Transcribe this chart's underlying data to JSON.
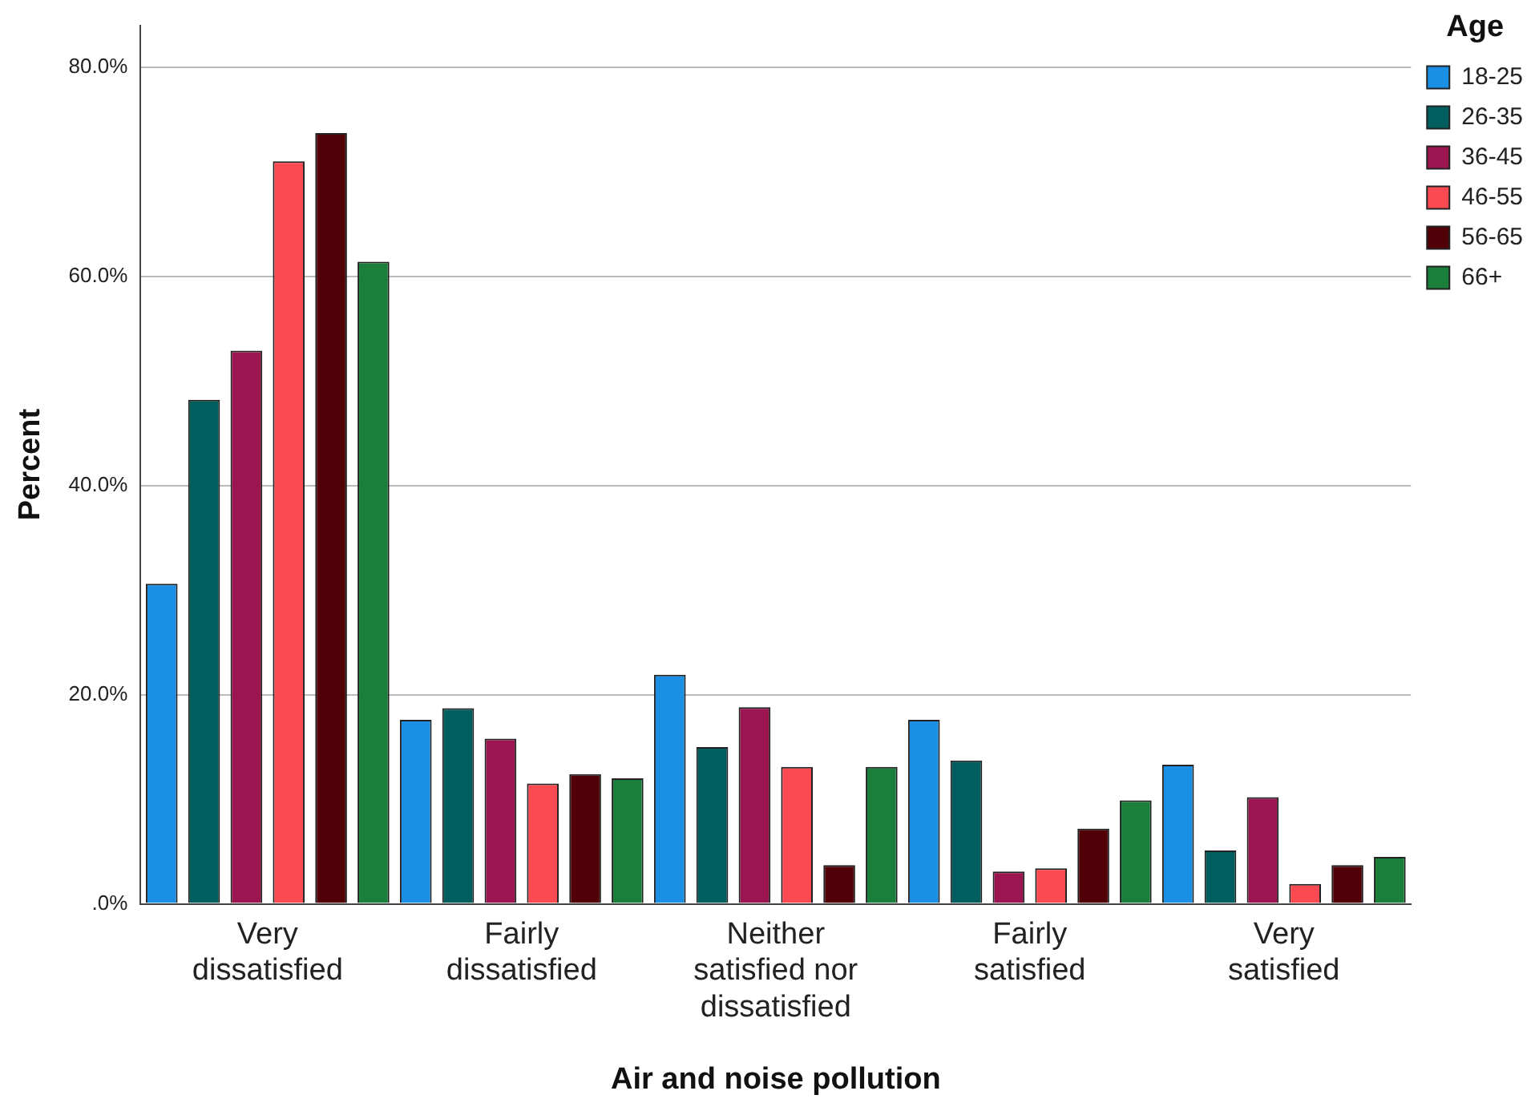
{
  "chart_data": {
    "type": "bar",
    "xlabel": "Air and noise pollution",
    "ylabel": "Percent",
    "legend_title": "Age",
    "legend": "right",
    "categories": [
      "Very dissatisfied",
      "Fairly dissatisfied",
      "Neither satisfied nor dissatisfied",
      "Fairly satisfied",
      "Very satisfied"
    ],
    "series": [
      {
        "name": "18-25",
        "color": "#1a8fe3",
        "values": [
          30.6,
          17.6,
          21.9,
          17.6,
          13.3
        ]
      },
      {
        "name": "26-35",
        "color": "#005e5e",
        "values": [
          48.2,
          18.7,
          15.0,
          13.7,
          5.1
        ]
      },
      {
        "name": "36-45",
        "color": "#9b1650",
        "values": [
          52.9,
          15.8,
          18.8,
          3.1,
          10.2
        ]
      },
      {
        "name": "46-55",
        "color": "#fb4a52",
        "values": [
          71.0,
          11.5,
          13.1,
          3.4,
          1.9
        ]
      },
      {
        "name": "56-65",
        "color": "#520008",
        "values": [
          73.7,
          12.4,
          3.7,
          7.2,
          3.7
        ]
      },
      {
        "name": "66+",
        "color": "#1a7f3a",
        "values": [
          61.4,
          12.0,
          13.1,
          9.9,
          4.5
        ]
      }
    ],
    "ylim": [
      0,
      84
    ],
    "yticks": [
      {
        "value": 0,
        "label": ".0%"
      },
      {
        "value": 20,
        "label": "20.0%"
      },
      {
        "value": 40,
        "label": "40.0%"
      },
      {
        "value": 60,
        "label": "60.0%"
      },
      {
        "value": 80,
        "label": "80.0%"
      }
    ],
    "grid": "y"
  }
}
